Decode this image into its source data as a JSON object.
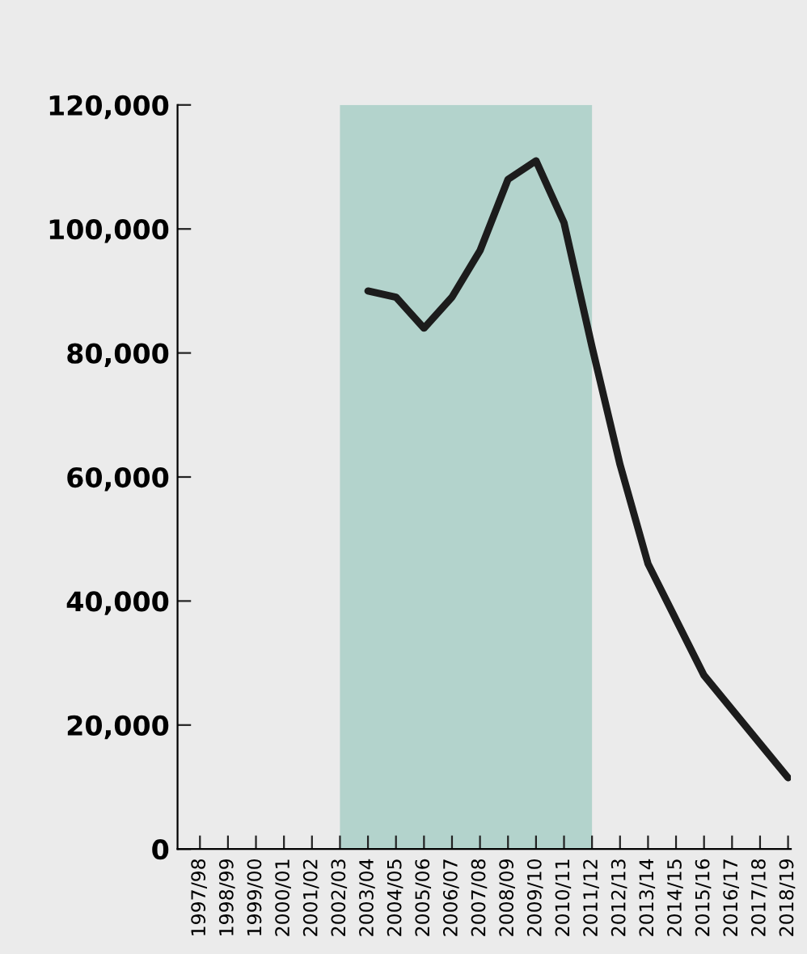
{
  "chart_data": {
    "type": "line",
    "categories": [
      "1997/98",
      "1998/99",
      "1999/00",
      "2000/01",
      "2001/02",
      "2002/03",
      "2003/04",
      "2004/05",
      "2005/06",
      "2006/07",
      "2007/08",
      "2008/09",
      "2009/10",
      "2010/11",
      "2011/12",
      "2012/13",
      "2013/14",
      "2014/15",
      "2015/16",
      "2016/17",
      "2017/18",
      "2018/19"
    ],
    "series": [
      {
        "color": "#1c1c1c",
        "values": [
          null,
          null,
          null,
          null,
          null,
          null,
          90000,
          89000,
          84000,
          89000,
          96500,
          108000,
          111000,
          101000,
          81000,
          62000,
          46000,
          37000,
          28000,
          22500,
          17000,
          11500
        ]
      }
    ],
    "ylim": [
      0,
      120000
    ],
    "yticks": [
      {
        "value": 0,
        "label": "0"
      },
      {
        "value": 20000,
        "label": "20,000"
      },
      {
        "value": 40000,
        "label": "40,000"
      },
      {
        "value": 60000,
        "label": "60,000"
      },
      {
        "value": 80000,
        "label": "80,000"
      },
      {
        "value": 100000,
        "label": "100,000"
      },
      {
        "value": 120000,
        "label": "120,000"
      }
    ],
    "bands": [
      {
        "axis": "x",
        "from": "2002/03",
        "to": "2011/12",
        "color": "#b3d3cc"
      }
    ],
    "grid": false,
    "legend": false,
    "marker": "none",
    "line_style": "solid"
  }
}
